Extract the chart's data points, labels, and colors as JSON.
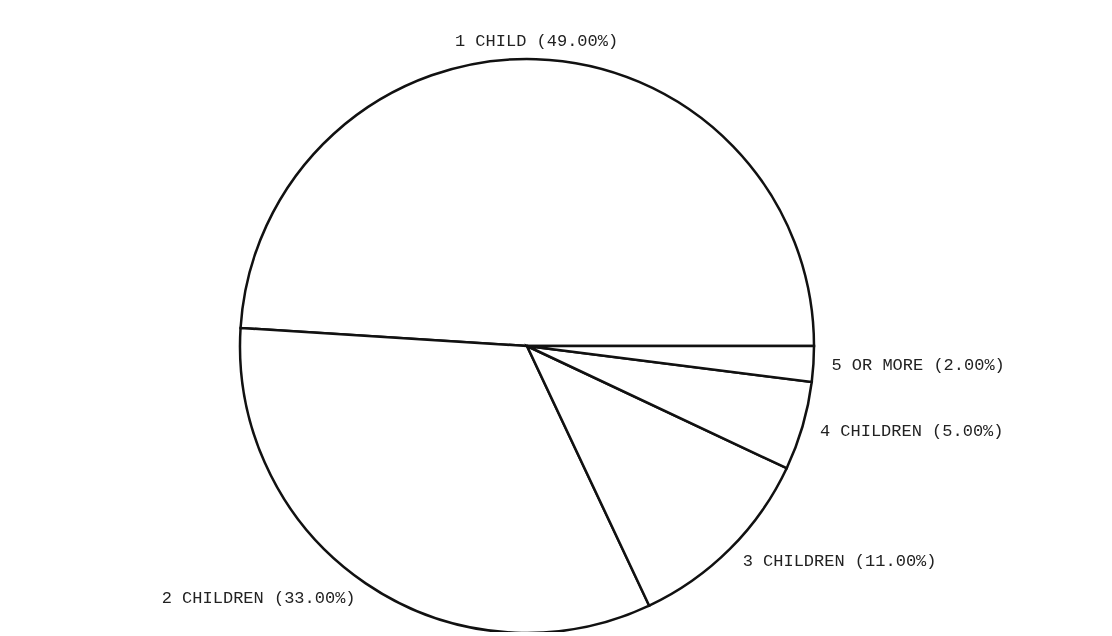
{
  "chart_data": {
    "type": "pie",
    "categories": [
      "1 CHILD",
      "2 CHILDREN",
      "3 CHILDREN",
      "4 CHILDREN",
      "5 OR MORE"
    ],
    "values": [
      49,
      33,
      11,
      5,
      2
    ],
    "value_labels": [
      "(49.00%)",
      "(33.00%)",
      "(11.00%)",
      "(5.00%)",
      "(2.00%)"
    ],
    "colors": [
      "#ffffff",
      "#ffffff",
      "#ffffff",
      "#ffffff",
      "#ffffff"
    ],
    "legend": false
  }
}
